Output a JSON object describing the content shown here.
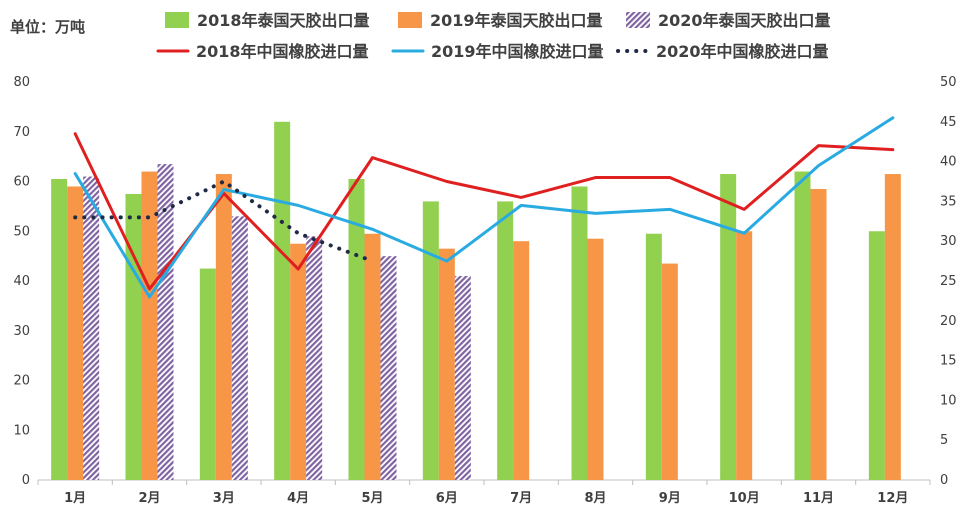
{
  "unit_label": "单位：万吨",
  "chart_data": {
    "type": "bar",
    "categories": [
      "1月",
      "2月",
      "3月",
      "4月",
      "5月",
      "6月",
      "7月",
      "8月",
      "9月",
      "10月",
      "11月",
      "12月"
    ],
    "left_axis": {
      "ylim": [
        0,
        80
      ],
      "ticks": [
        0,
        10,
        20,
        30,
        40,
        50,
        60,
        70,
        80
      ]
    },
    "right_axis": {
      "ylim": [
        0,
        50
      ],
      "ticks": [
        0,
        5,
        10,
        15,
        20,
        25,
        30,
        35,
        40,
        45,
        50
      ]
    },
    "bar_series": [
      {
        "name": "2018年泰国天胶出口量",
        "color": "#92d050",
        "pattern": "solid",
        "values": [
          60.5,
          57.5,
          42.5,
          72.0,
          60.5,
          56.0,
          56.0,
          59.0,
          49.5,
          61.5,
          62.0,
          50.0
        ]
      },
      {
        "name": "2019年泰国天胶出口量",
        "color": "#f79646",
        "pattern": "solid",
        "values": [
          59.0,
          62.0,
          61.5,
          47.5,
          49.5,
          46.5,
          48.0,
          48.5,
          43.5,
          50.0,
          58.5,
          61.5
        ]
      },
      {
        "name": "2020年泰国天胶出口量",
        "color": "#8064a2",
        "pattern": "hatch",
        "values": [
          61.0,
          63.5,
          53.0,
          49.0,
          45.0,
          41.0,
          null,
          null,
          null,
          null,
          null,
          null
        ]
      }
    ],
    "line_series": [
      {
        "name": "2018年中国橡胶进口量",
        "color": "#e02020",
        "style": "solid",
        "values": [
          43.5,
          24.0,
          36.0,
          26.5,
          40.5,
          37.5,
          35.5,
          38.0,
          38.0,
          34.0,
          42.0,
          41.5
        ]
      },
      {
        "name": "2019年中国橡胶进口量",
        "color": "#29abe2",
        "style": "solid",
        "values": [
          38.5,
          23.0,
          36.5,
          34.5,
          31.5,
          27.5,
          34.5,
          33.5,
          34.0,
          31.0,
          39.5,
          45.5
        ]
      },
      {
        "name": "2020年中国橡胶进口量",
        "color": "#1f2a44",
        "style": "dotted",
        "values": [
          33.0,
          33.0,
          37.5,
          31.0,
          27.5,
          null,
          null,
          null,
          null,
          null,
          null,
          null
        ]
      }
    ],
    "legend_position": "top",
    "grid": false
  }
}
